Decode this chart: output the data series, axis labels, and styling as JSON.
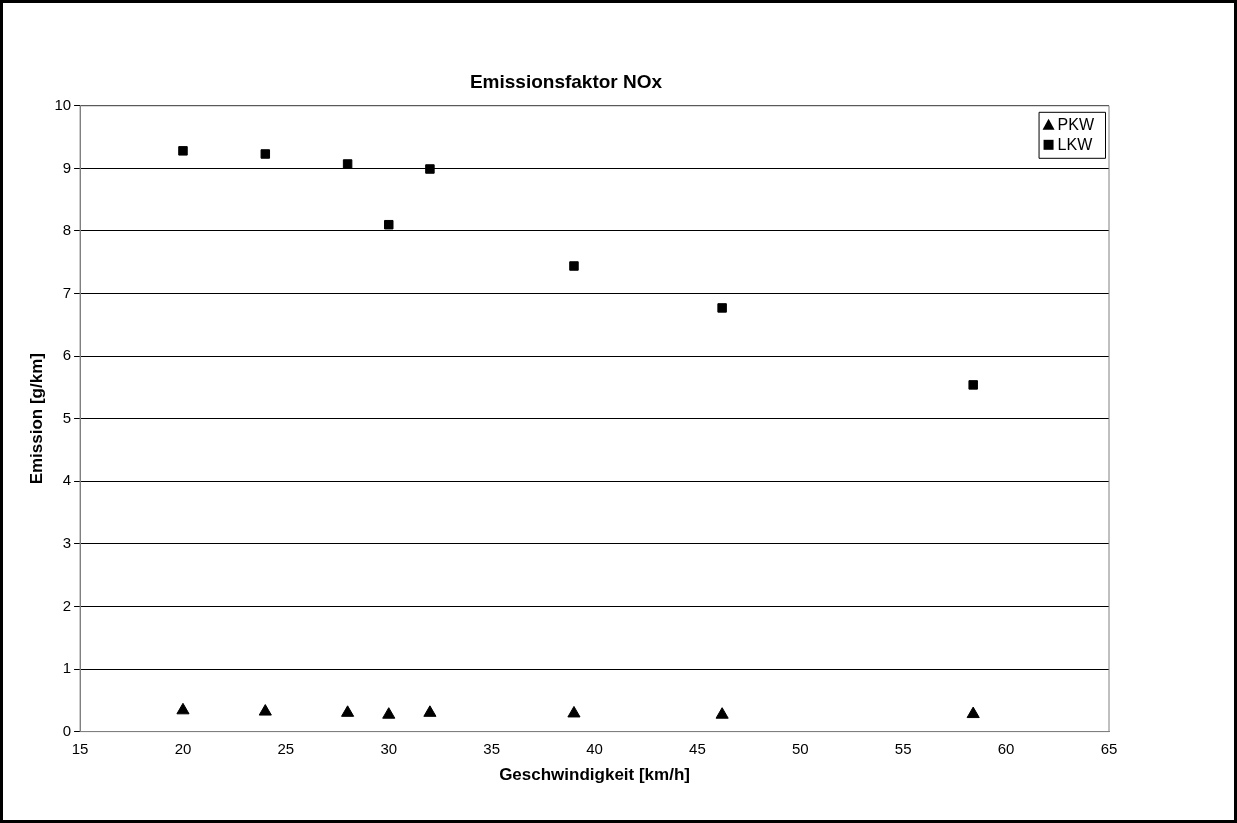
{
  "chart_data": {
    "type": "scatter",
    "title": "Emissionsfaktor NOx",
    "xlabel": "Geschwindigkeit [km/h]",
    "ylabel": "Emission [g/km]",
    "xlim": [
      15,
      65
    ],
    "xticks": [
      15,
      20,
      25,
      30,
      35,
      40,
      45,
      50,
      55,
      60,
      65
    ],
    "ylim": [
      0,
      10
    ],
    "yticks": [
      0,
      1,
      2,
      3,
      4,
      5,
      6,
      7,
      8,
      9,
      10
    ],
    "grid": "y",
    "legend": "top right",
    "series": [
      {
        "name": "PKW",
        "color": "#000000",
        "marker": "triangle",
        "x": [
          20,
          24,
          28,
          30,
          32,
          39,
          46.2,
          58.4
        ],
        "values": [
          0.34,
          0.32,
          0.3,
          0.27,
          0.3,
          0.29,
          0.27,
          0.28
        ]
      },
      {
        "name": "LKW",
        "color": "#000000",
        "marker": "square",
        "x": [
          20,
          24,
          28,
          30,
          32,
          39,
          46.2,
          58.4
        ],
        "values": [
          9.28,
          9.23,
          9.07,
          8.1,
          8.99,
          7.44,
          6.77,
          5.54
        ]
      }
    ]
  }
}
